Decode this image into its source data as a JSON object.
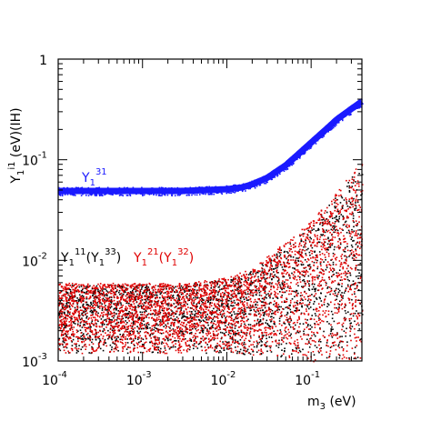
{
  "chart_data": {
    "type": "scatter",
    "x_scale": "log",
    "y_scale": "log",
    "xlim": [
      0.0001,
      0.4
    ],
    "ylim": [
      0.001,
      1
    ],
    "xlabel": {
      "main": "m",
      "sub": "3",
      "unit": " (eV)"
    },
    "ylabel": {
      "main": "Y",
      "sub": "1",
      "sup": "i1",
      "unit": " (eV)(IH)"
    },
    "x_ticks": [
      {
        "value": 0.0001,
        "base": "10",
        "exp": "-4"
      },
      {
        "value": 0.001,
        "base": "10",
        "exp": "-3"
      },
      {
        "value": 0.01,
        "base": "10",
        "exp": "-2"
      },
      {
        "value": 0.1,
        "base": "10",
        "exp": "-1"
      }
    ],
    "y_ticks": [
      {
        "value": 0.001,
        "base": "10",
        "exp": "-3"
      },
      {
        "value": 0.01,
        "base": "10",
        "exp": "-2"
      },
      {
        "value": 0.1,
        "base": "10",
        "exp": "-1"
      },
      {
        "value": 1,
        "base": "1",
        "exp": ""
      }
    ],
    "series": [
      {
        "name": "Y1^31",
        "color": "#1a1aff",
        "style": "dense band",
        "points": [
          [
            0.0001,
            0.049
          ],
          [
            0.0003,
            0.049
          ],
          [
            0.001,
            0.049
          ],
          [
            0.003,
            0.049
          ],
          [
            0.006,
            0.05
          ],
          [
            0.01,
            0.051
          ],
          [
            0.015,
            0.053
          ],
          [
            0.02,
            0.057
          ],
          [
            0.03,
            0.066
          ],
          [
            0.05,
            0.088
          ],
          [
            0.08,
            0.125
          ],
          [
            0.1,
            0.148
          ],
          [
            0.15,
            0.2
          ],
          [
            0.2,
            0.25
          ],
          [
            0.3,
            0.32
          ],
          [
            0.4,
            0.38
          ]
        ]
      },
      {
        "name": "Y1^11(Y1^33)",
        "color": "#000000",
        "style": "scatter cloud",
        "lower": [
          [
            0.0001,
            0.0012
          ],
          [
            0.01,
            0.0012
          ],
          [
            0.05,
            0.0011
          ],
          [
            0.1,
            0.001
          ],
          [
            0.4,
            0.001
          ]
        ],
        "upper": [
          [
            0.0001,
            0.0058
          ],
          [
            0.003,
            0.0058
          ],
          [
            0.01,
            0.0065
          ],
          [
            0.02,
            0.008
          ],
          [
            0.05,
            0.014
          ],
          [
            0.1,
            0.022
          ],
          [
            0.2,
            0.045
          ],
          [
            0.3,
            0.07
          ],
          [
            0.4,
            0.09
          ]
        ]
      },
      {
        "name": "Y1^21(Y1^32)",
        "color": "#e00000",
        "style": "scatter cloud",
        "lower": [
          [
            0.0001,
            0.0012
          ],
          [
            0.01,
            0.0012
          ],
          [
            0.05,
            0.0011
          ],
          [
            0.1,
            0.001
          ],
          [
            0.4,
            0.001
          ]
        ],
        "upper": [
          [
            0.0001,
            0.006
          ],
          [
            0.003,
            0.006
          ],
          [
            0.01,
            0.0068
          ],
          [
            0.02,
            0.0085
          ],
          [
            0.05,
            0.016
          ],
          [
            0.1,
            0.025
          ],
          [
            0.2,
            0.05
          ],
          [
            0.3,
            0.075
          ],
          [
            0.4,
            0.095
          ]
        ]
      }
    ],
    "annotations": [
      {
        "id": "blue",
        "main": "Y",
        "sub": "1",
        "sup": "31",
        "color": "#1a1aff"
      },
      {
        "id": "black",
        "text_parts": [
          "Y",
          "1",
          "11",
          "(Y",
          "1",
          "33",
          ")"
        ],
        "color": "#000000"
      },
      {
        "id": "red",
        "text_parts": [
          "Y",
          "1",
          "21",
          "(Y",
          "1",
          "32",
          ")"
        ],
        "color": "#e00000"
      }
    ]
  }
}
